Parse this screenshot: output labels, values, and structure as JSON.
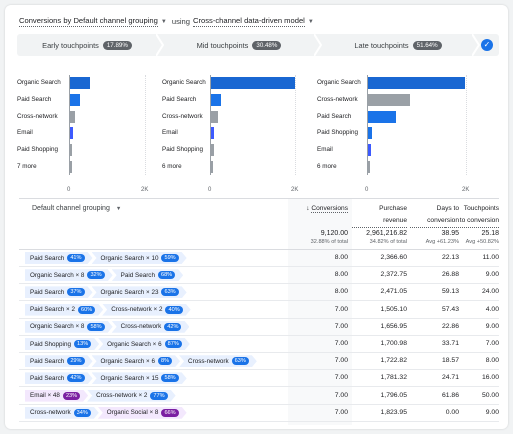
{
  "header": {
    "dimension_label": "Conversions by Default channel grouping",
    "using_text": "using",
    "model_label": "Cross-channel data-driven model"
  },
  "touchpoints": [
    {
      "label": "Early touchpoints",
      "pct": "17.89%"
    },
    {
      "label": "Mid touchpoints",
      "pct": "30.48%"
    },
    {
      "label": "Late touchpoints",
      "pct": "51.64%"
    }
  ],
  "colors": {
    "blue_dark": "#1967d2",
    "blue": "#1a73e8",
    "indigo": "#3d5afe",
    "gray": "#9aa0a6",
    "badge_blue": "#1a73e8",
    "badge_purple": "#7b1fa2",
    "chip_blue": "#e8f0fe",
    "chip_purple": "#f3e8fd"
  },
  "chart_data": [
    {
      "type": "bar",
      "title": "Early touchpoints",
      "categories": [
        "Organic Search",
        "Paid Search",
        "Cross-network",
        "Email",
        "Paid Shopping",
        "7 more"
      ],
      "values": [
        520,
        260,
        120,
        80,
        40,
        25
      ],
      "xlim": [
        0,
        2000
      ],
      "xticks": [
        "0",
        "2K"
      ],
      "bar_colors": [
        "#1967d2",
        "#1a73e8",
        "#9aa0a6",
        "#3d5afe",
        "#9aa0a6",
        "#9aa0a6"
      ]
    },
    {
      "type": "bar",
      "title": "Mid touchpoints",
      "categories": [
        "Organic Search",
        "Paid Search",
        "Cross-network",
        "Email",
        "Paid Shopping",
        "6 more"
      ],
      "values": [
        1970,
        230,
        160,
        80,
        70,
        55
      ],
      "xlim": [
        0,
        2000
      ],
      "xticks": [
        "0",
        "2K"
      ],
      "bar_colors": [
        "#1967d2",
        "#1a73e8",
        "#9aa0a6",
        "#3d5afe",
        "#9aa0a6",
        "#9aa0a6"
      ]
    },
    {
      "type": "bar",
      "title": "Late touchpoints",
      "categories": [
        "Organic Search",
        "Cross-network",
        "Paid Search",
        "Paid Shopping",
        "Email",
        "6 more"
      ],
      "values": [
        1960,
        850,
        570,
        80,
        60,
        40
      ],
      "xlim": [
        0,
        2000
      ],
      "xticks": [
        "0",
        "2K"
      ],
      "bar_colors": [
        "#1967d2",
        "#9aa0a6",
        "#1a73e8",
        "#1a73e8",
        "#3d5afe",
        "#9aa0a6"
      ]
    }
  ],
  "table": {
    "dimension_header": "Default channel grouping",
    "columns": [
      {
        "l1": "Conversions",
        "l2": "",
        "sort": "↓"
      },
      {
        "l1": "Purchase",
        "l2": "revenue",
        "sort": ""
      },
      {
        "l1": "Days to",
        "l2": "conversion",
        "sort": ""
      },
      {
        "l1": "Touchpoints",
        "l2": "to conversion",
        "sort": ""
      }
    ],
    "totals": [
      {
        "v": "9,120.00",
        "s": "32.88% of total"
      },
      {
        "v": "2,961,216.82",
        "s": "34.82% of total"
      },
      {
        "v": "38.95",
        "s": "Avg +61.23%"
      },
      {
        "v": "25.18",
        "s": "Avg +50.82%"
      }
    ],
    "rows": [
      {
        "path": [
          {
            "t": "Paid Search",
            "b": "41%",
            "c": "blue"
          },
          {
            "t": "Organic Search × 10",
            "b": "59%",
            "c": "blue"
          }
        ],
        "cells": [
          "8.00",
          "2,366.60",
          "22.13",
          "11.00"
        ]
      },
      {
        "path": [
          {
            "t": "Organic Search × 8",
            "b": "32%",
            "c": "blue"
          },
          {
            "t": "Paid Search",
            "b": "68%",
            "c": "blue"
          }
        ],
        "cells": [
          "8.00",
          "2,372.75",
          "26.88",
          "9.00"
        ]
      },
      {
        "path": [
          {
            "t": "Paid Search",
            "b": "37%",
            "c": "blue"
          },
          {
            "t": "Organic Search × 23",
            "b": "63%",
            "c": "blue"
          }
        ],
        "cells": [
          "8.00",
          "2,471.05",
          "59.13",
          "24.00"
        ]
      },
      {
        "path": [
          {
            "t": "Paid Search × 2",
            "b": "60%",
            "c": "blue"
          },
          {
            "t": "Cross-network × 2",
            "b": "40%",
            "c": "blue"
          }
        ],
        "cells": [
          "7.00",
          "1,505.10",
          "57.43",
          "4.00"
        ]
      },
      {
        "path": [
          {
            "t": "Organic Search × 8",
            "b": "58%",
            "c": "blue"
          },
          {
            "t": "Cross-network",
            "b": "42%",
            "c": "blue"
          }
        ],
        "cells": [
          "7.00",
          "1,656.95",
          "22.86",
          "9.00"
        ]
      },
      {
        "path": [
          {
            "t": "Paid Shopping",
            "b": "13%",
            "c": "blue"
          },
          {
            "t": "Organic Search × 6",
            "b": "87%",
            "c": "blue"
          }
        ],
        "cells": [
          "7.00",
          "1,700.98",
          "33.71",
          "7.00"
        ]
      },
      {
        "path": [
          {
            "t": "Paid Search",
            "b": "29%",
            "c": "blue"
          },
          {
            "t": "Organic Search × 6",
            "b": "8%",
            "c": "blue"
          },
          {
            "t": "Cross-network",
            "b": "63%",
            "c": "blue"
          }
        ],
        "cells": [
          "7.00",
          "1,722.82",
          "18.57",
          "8.00"
        ]
      },
      {
        "path": [
          {
            "t": "Paid Search",
            "b": "42%",
            "c": "blue"
          },
          {
            "t": "Organic Search × 15",
            "b": "58%",
            "c": "blue"
          }
        ],
        "cells": [
          "7.00",
          "1,781.32",
          "24.71",
          "16.00"
        ]
      },
      {
        "path": [
          {
            "t": "Email × 48",
            "b": "23%",
            "c": "purple"
          },
          {
            "t": "Cross-network × 2",
            "b": "77%",
            "c": "blue"
          }
        ],
        "cells": [
          "7.00",
          "1,796.05",
          "61.86",
          "50.00"
        ]
      },
      {
        "path": [
          {
            "t": "Cross-network",
            "b": "34%",
            "c": "blue"
          },
          {
            "t": "Organic Social × 8",
            "b": "66%",
            "c": "purple"
          }
        ],
        "cells": [
          "7.00",
          "1,823.95",
          "0.00",
          "9.00"
        ]
      }
    ]
  }
}
